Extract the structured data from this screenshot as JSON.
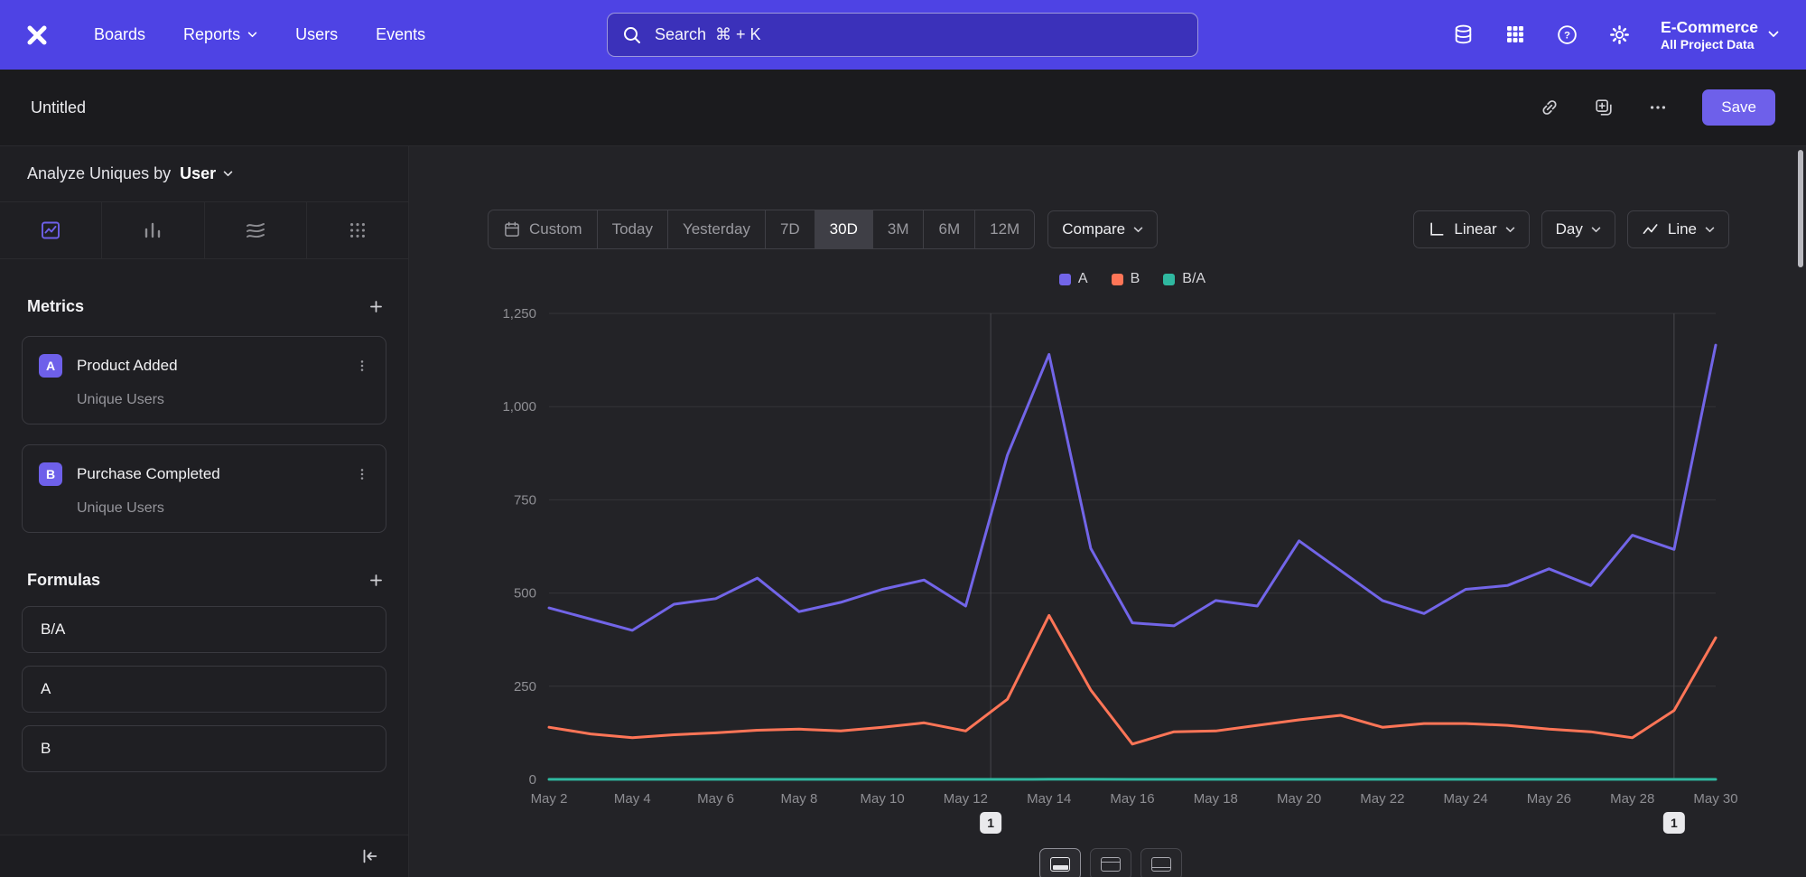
{
  "colors": {
    "nav": "#4e43e4",
    "accent": "#6e60ea"
  },
  "nav": {
    "brand": "Mixpanel",
    "items": [
      {
        "label": "Boards"
      },
      {
        "label": "Reports"
      },
      {
        "label": "Users"
      },
      {
        "label": "Events"
      }
    ],
    "search": {
      "placeholder": "Search  ⌘ + K"
    },
    "project": {
      "name": "E-Commerce",
      "scope": "All Project Data"
    }
  },
  "report_header": {
    "title": "Untitled",
    "save_label": "Save"
  },
  "sidebar": {
    "analyze": {
      "label": "Analyze Uniques by",
      "value": "User"
    },
    "view_tabs": [
      "insights-line-chart",
      "bar-chart",
      "flows",
      "metric-grid"
    ],
    "metrics": {
      "title": "Metrics",
      "items": [
        {
          "badge": "A",
          "name": "Product Added",
          "sub": "Unique Users"
        },
        {
          "badge": "B",
          "name": "Purchase Completed",
          "sub": "Unique Users"
        }
      ]
    },
    "formulas": {
      "title": "Formulas",
      "items": [
        {
          "name": "B/A"
        },
        {
          "name": "A"
        },
        {
          "name": "B"
        }
      ]
    }
  },
  "toolbar": {
    "date_ranges": [
      "Custom",
      "Today",
      "Yesterday",
      "7D",
      "30D",
      "3M",
      "6M",
      "12M"
    ],
    "active_range": "30D",
    "compare_label": "Compare",
    "scale_label": "Linear",
    "interval_label": "Day",
    "chart_type_label": "Line"
  },
  "chart_data": {
    "type": "line",
    "title": "",
    "x_tick_labels": [
      "May 2",
      "May 4",
      "May 6",
      "May 8",
      "May 10",
      "May 12",
      "May 14",
      "May 16",
      "May 18",
      "May 20",
      "May 22",
      "May 24",
      "May 26",
      "May 28",
      "May 30"
    ],
    "label_every": 2,
    "ylim": [
      0,
      1250
    ],
    "yticks": [
      0,
      250,
      500,
      750,
      1000,
      1250
    ],
    "ytick_labels": [
      "0",
      "250",
      "500",
      "750",
      "1,000",
      "1,250"
    ],
    "grid": true,
    "legend_position": "top-center",
    "series": [
      {
        "name": "A",
        "color": "#7265e8",
        "values": [
          460,
          430,
          400,
          470,
          485,
          540,
          450,
          475,
          510,
          535,
          465,
          870,
          1140,
          620,
          420,
          412,
          480,
          465,
          640,
          560,
          480,
          445,
          510,
          520,
          565,
          520,
          655,
          617,
          1165
        ]
      },
      {
        "name": "B",
        "color": "#ff7557",
        "values": [
          140,
          122,
          112,
          120,
          125,
          132,
          135,
          130,
          140,
          152,
          130,
          215,
          440,
          240,
          95,
          128,
          130,
          145,
          160,
          172,
          140,
          150,
          150,
          145,
          135,
          128,
          112,
          185,
          380
        ]
      },
      {
        "name": "B/A",
        "color": "#2fb8a0",
        "values": [
          0.3,
          0.28,
          0.28,
          0.26,
          0.26,
          0.24,
          0.3,
          0.27,
          0.27,
          0.28,
          0.28,
          0.25,
          0.39,
          0.39,
          0.23,
          0.31,
          0.27,
          0.31,
          0.25,
          0.31,
          0.29,
          0.34,
          0.29,
          0.28,
          0.24,
          0.25,
          0.17,
          0.3,
          0.33
        ]
      }
    ],
    "annotations": [
      {
        "label": "1",
        "point_index": 10.6
      },
      {
        "label": "1",
        "point_index": 27
      }
    ]
  },
  "bottom_toggles": [
    "chart-and-table-view",
    "table-top-view",
    "table-only-view"
  ]
}
